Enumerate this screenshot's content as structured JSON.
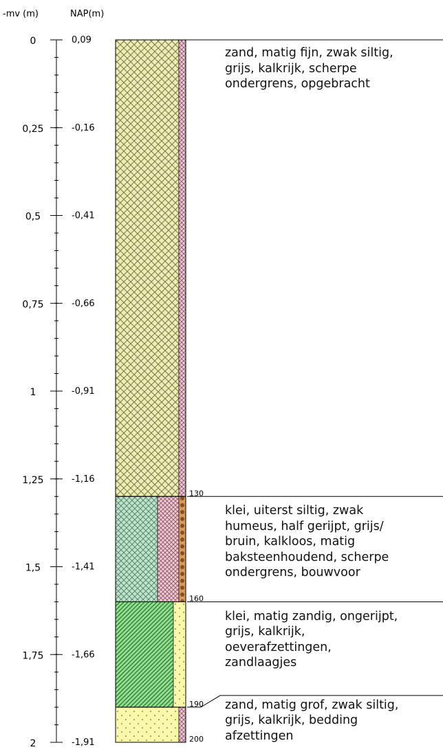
{
  "axis": {
    "header_mv": "-mv (m)",
    "header_nap": "NAP(m)",
    "ticks": [
      {
        "mv": 0,
        "mv_label": "0",
        "nap_label": "0,09"
      },
      {
        "mv": 0.25,
        "mv_label": "0,25",
        "nap_label": "-0,16"
      },
      {
        "mv": 0.5,
        "mv_label": "0,5",
        "nap_label": "-0,41"
      },
      {
        "mv": 0.75,
        "mv_label": "0,75",
        "nap_label": "-0,66"
      },
      {
        "mv": 1,
        "mv_label": "1",
        "nap_label": "-0,91"
      },
      {
        "mv": 1.25,
        "mv_label": "1,25",
        "nap_label": "-1,16"
      },
      {
        "mv": 1.5,
        "mv_label": "1,5",
        "nap_label": "-1,41"
      },
      {
        "mv": 1.75,
        "mv_label": "1,75",
        "nap_label": "-1,66"
      },
      {
        "mv": 2,
        "mv_label": "2",
        "nap_label": "-1,91"
      }
    ],
    "range_mv": [
      0,
      2
    ],
    "minor_step_mv": 0.05
  },
  "layers": [
    {
      "top_cm": 0,
      "bottom_cm": 130,
      "bottom_label": "130",
      "columns": [
        {
          "pattern": "crosshatch-sand",
          "share": 0.9
        },
        {
          "pattern": "pink-hatch",
          "share": 0.1
        }
      ],
      "lines": [
        "zand, matig fijn, zwak siltig,",
        "grijs, kalkrijk, scherpe",
        "ondergrens, opgebracht"
      ]
    },
    {
      "top_cm": 130,
      "bottom_cm": 160,
      "bottom_label": "160",
      "columns": [
        {
          "pattern": "crosshatch-green",
          "share": 0.6
        },
        {
          "pattern": "pink-hatch",
          "share": 0.3
        },
        {
          "pattern": "brick",
          "share": 0.1
        }
      ],
      "lines": [
        "klei, uiterst siltig, zwak",
        "humeus, half gerijpt, grijs/",
        "bruin, kalkloos, matig",
        "baksteenhoudend, scherpe",
        "ondergrens, bouwvoor"
      ]
    },
    {
      "top_cm": 160,
      "bottom_cm": 190,
      "bottom_label": "190",
      "columns": [
        {
          "pattern": "diag-green",
          "share": 0.82
        },
        {
          "pattern": "sand-dots",
          "share": 0.18
        }
      ],
      "lines": [
        "klei, matig zandig, ongerijpt,",
        "grijs, kalkrijk,",
        "oeverafzettingen,",
        "zandlaagjes"
      ]
    },
    {
      "top_cm": 190,
      "bottom_cm": 200,
      "bottom_label": "200",
      "columns": [
        {
          "pattern": "sand-dots",
          "share": 0.9
        },
        {
          "pattern": "pink-hatch",
          "share": 0.1
        }
      ],
      "lines": [
        "zand, matig grof, zwak siltig,",
        "grijs, kalkrijk, bedding",
        "afzettingen"
      ]
    }
  ]
}
